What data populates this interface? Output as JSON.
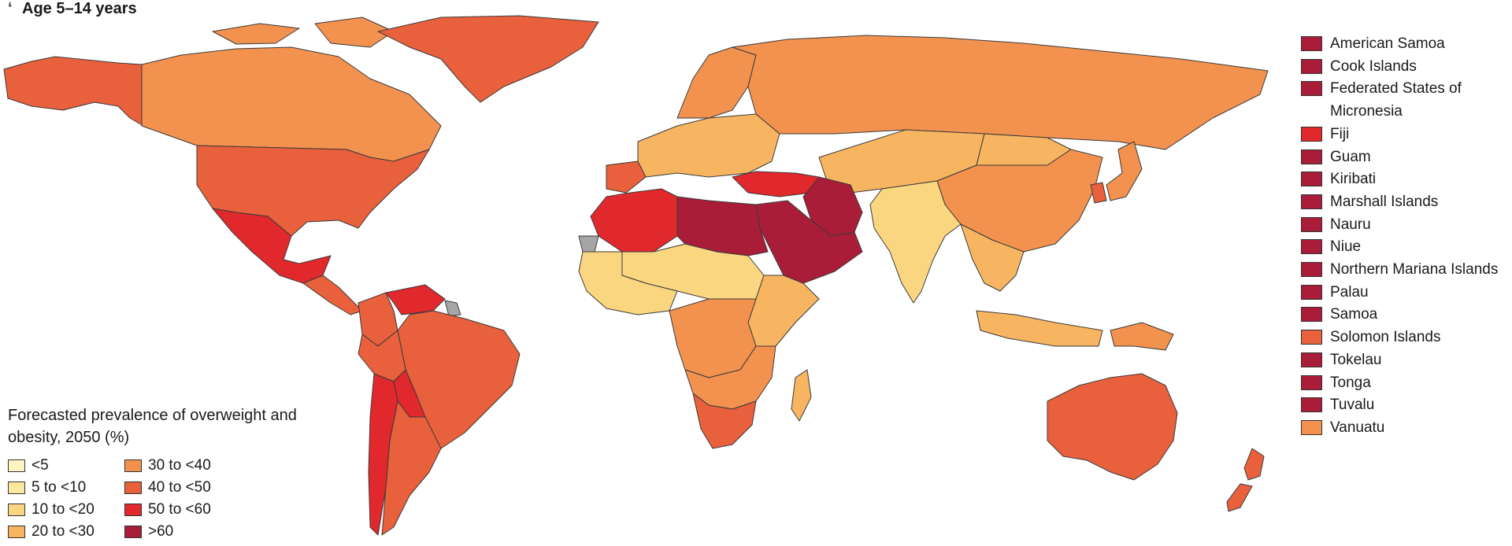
{
  "panel": {
    "marker": "ʻ",
    "title": "Age 5–14 years"
  },
  "legend": {
    "title": "Forecasted prevalence of overweight and obesity, 2050 (%)",
    "classes": [
      {
        "label": "<5",
        "color": "#fdf6c3"
      },
      {
        "label": "5 to <10",
        "color": "#fce9a0"
      },
      {
        "label": "10 to <20",
        "color": "#fbd680"
      },
      {
        "label": "20 to <30",
        "color": "#f8b561"
      },
      {
        "label": "30 to <40",
        "color": "#f3924f"
      },
      {
        "label": "40 to <50",
        "color": "#e9603c"
      },
      {
        "label": "50 to <60",
        "color": "#e1282d"
      },
      {
        "label": ">60",
        "color": "#a91d38"
      }
    ],
    "no_data_color": "#a6a6a6"
  },
  "island_legend": [
    {
      "name": "American Samoa",
      "class": ">60"
    },
    {
      "name": "Cook Islands",
      "class": ">60"
    },
    {
      "name": "Federated States of Micronesia",
      "class": ">60"
    },
    {
      "name": "Fiji",
      "class": "50 to <60"
    },
    {
      "name": "Guam",
      "class": ">60"
    },
    {
      "name": "Kiribati",
      "class": ">60"
    },
    {
      "name": "Marshall Islands",
      "class": ">60"
    },
    {
      "name": "Nauru",
      "class": ">60"
    },
    {
      "name": "Niue",
      "class": ">60"
    },
    {
      "name": "Northern Mariana Islands",
      "class": ">60"
    },
    {
      "name": "Palau",
      "class": ">60"
    },
    {
      "name": "Samoa",
      "class": ">60"
    },
    {
      "name": "Solomon Islands",
      "class": "40 to <50"
    },
    {
      "name": "Tokelau",
      "class": ">60"
    },
    {
      "name": "Tonga",
      "class": ">60"
    },
    {
      "name": "Tuvalu",
      "class": ">60"
    },
    {
      "name": "Vanuatu",
      "class": "30 to <40"
    }
  ],
  "regions": {
    "alaska": "40 to <50",
    "canada": "30 to <40",
    "greenland": "40 to <50",
    "usa": "40 to <50",
    "mexico": "50 to <60",
    "central_america": "40 to <50",
    "venezuela": "50 to <60",
    "colombia": "40 to <50",
    "brazil": "40 to <50",
    "peru": "40 to <50",
    "bolivia": "50 to <60",
    "chile": "50 to <60",
    "argentina": "40 to <50",
    "europe": "20 to <30",
    "scandinavia": "30 to <40",
    "russia": "30 to <40",
    "iberia": "40 to <50",
    "turkey": "50 to <60",
    "north_africa_west": "50 to <60",
    "libya_egypt": ">60",
    "arabia": ">60",
    "iran": ">60",
    "sahel": "10 to <20",
    "west_africa": "10 to <20",
    "central_africa": "30 to <40",
    "east_africa": "20 to <30",
    "southern_africa": "30 to <40",
    "south_africa": "40 to <50",
    "madagascar": "20 to <30",
    "central_asia": "20 to <30",
    "mongolia": "20 to <30",
    "china": "30 to <40",
    "india": "10 to <20",
    "southeast_asia": "20 to <30",
    "indonesia": "20 to <30",
    "japan": "30 to <40",
    "korea": "40 to <50",
    "australia": "40 to <50",
    "new_zealand": "40 to <50",
    "papua": "30 to <40",
    "western_sahara": "no data",
    "guiana": "no data"
  }
}
